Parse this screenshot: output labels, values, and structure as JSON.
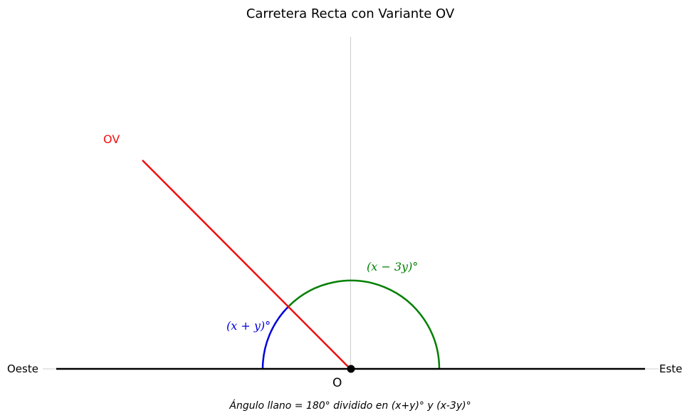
{
  "title": "Carretera Recta con Variante OV",
  "labels": {
    "west": "Oeste",
    "east": "Este",
    "origin": "O",
    "ray": "OV"
  },
  "angles": {
    "blue_label": "(x + y)°",
    "green_label": "(x − 3y)°",
    "ray_direction_deg": 135
  },
  "caption": "Ángulo llano = 180° dividido en (x+y)° y (x-3y)°",
  "colors": {
    "road": "#000000",
    "ray": "#ee1111",
    "blue_arc": "#0000dd",
    "green_arc": "#008000",
    "guide": "#cccccc"
  }
}
